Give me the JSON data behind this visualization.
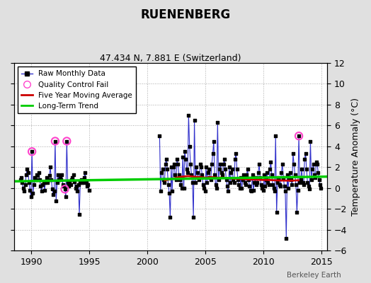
{
  "title": "RUENENBERG",
  "subtitle": "47.434 N, 7.881 E (Switzerland)",
  "ylabel": "Temperature Anomaly (°C)",
  "watermark": "Berkeley Earth",
  "xlim": [
    1988.5,
    2015.5
  ],
  "ylim": [
    -6,
    12
  ],
  "yticks": [
    -6,
    -4,
    -2,
    0,
    2,
    4,
    6,
    8,
    10,
    12
  ],
  "xticks": [
    1990,
    1995,
    2000,
    2005,
    2010,
    2015
  ],
  "bg_color": "#e0e0e0",
  "plot_bg_color": "#ffffff",
  "raw_color": "#3333cc",
  "ma_color": "#cc0000",
  "trend_color": "#00cc00",
  "qc_color": "#ff44cc",
  "raw_data": [
    [
      1989.042,
      0.8
    ],
    [
      1989.125,
      1.0
    ],
    [
      1989.208,
      0.5
    ],
    [
      1989.292,
      0.0
    ],
    [
      1989.375,
      -0.3
    ],
    [
      1989.458,
      0.3
    ],
    [
      1989.542,
      1.3
    ],
    [
      1989.625,
      1.8
    ],
    [
      1989.708,
      1.5
    ],
    [
      1989.792,
      0.5
    ],
    [
      1989.875,
      -0.2
    ],
    [
      1989.958,
      -0.8
    ],
    [
      1990.042,
      3.5
    ],
    [
      1990.125,
      -0.5
    ],
    [
      1990.208,
      0.3
    ],
    [
      1990.292,
      1.0
    ],
    [
      1990.375,
      0.8
    ],
    [
      1990.458,
      1.3
    ],
    [
      1990.542,
      1.2
    ],
    [
      1990.625,
      1.5
    ],
    [
      1990.708,
      0.8
    ],
    [
      1990.792,
      0.2
    ],
    [
      1990.875,
      -0.3
    ],
    [
      1990.958,
      0.3
    ],
    [
      1991.042,
      0.5
    ],
    [
      1991.125,
      -0.2
    ],
    [
      1991.208,
      0.5
    ],
    [
      1991.292,
      1.0
    ],
    [
      1991.375,
      0.5
    ],
    [
      1991.458,
      0.8
    ],
    [
      1991.542,
      1.2
    ],
    [
      1991.625,
      2.0
    ],
    [
      1991.708,
      0.8
    ],
    [
      1991.792,
      -0.1
    ],
    [
      1991.875,
      -0.6
    ],
    [
      1991.958,
      -0.3
    ],
    [
      1992.042,
      4.5
    ],
    [
      1992.125,
      -1.2
    ],
    [
      1992.208,
      0.5
    ],
    [
      1992.292,
      1.3
    ],
    [
      1992.375,
      0.8
    ],
    [
      1992.458,
      1.0
    ],
    [
      1992.542,
      0.8
    ],
    [
      1992.625,
      1.3
    ],
    [
      1992.708,
      0.3
    ],
    [
      1992.792,
      0.2
    ],
    [
      1992.875,
      -0.1
    ],
    [
      1992.958,
      -0.8
    ],
    [
      1993.042,
      4.5
    ],
    [
      1993.125,
      0.5
    ],
    [
      1993.208,
      0.2
    ],
    [
      1993.292,
      0.6
    ],
    [
      1993.375,
      0.3
    ],
    [
      1993.458,
      0.8
    ],
    [
      1993.542,
      1.0
    ],
    [
      1993.625,
      1.3
    ],
    [
      1993.708,
      0.6
    ],
    [
      1993.792,
      0.0
    ],
    [
      1993.875,
      0.2
    ],
    [
      1993.958,
      -0.3
    ],
    [
      1994.042,
      0.3
    ],
    [
      1994.125,
      -2.5
    ],
    [
      1994.208,
      0.5
    ],
    [
      1994.292,
      0.8
    ],
    [
      1994.375,
      0.5
    ],
    [
      1994.458,
      0.5
    ],
    [
      1994.542,
      1.0
    ],
    [
      1994.625,
      1.5
    ],
    [
      1994.708,
      0.5
    ],
    [
      1994.792,
      0.2
    ],
    [
      1994.875,
      0.3
    ],
    [
      1994.958,
      -0.2
    ],
    [
      2001.042,
      5.0
    ],
    [
      2001.125,
      -0.3
    ],
    [
      2001.208,
      1.5
    ],
    [
      2001.292,
      1.8
    ],
    [
      2001.375,
      0.8
    ],
    [
      2001.458,
      0.5
    ],
    [
      2001.542,
      2.3
    ],
    [
      2001.625,
      2.8
    ],
    [
      2001.708,
      1.8
    ],
    [
      2001.792,
      0.3
    ],
    [
      2001.875,
      -0.5
    ],
    [
      2001.958,
      -2.8
    ],
    [
      2002.042,
      2.0
    ],
    [
      2002.125,
      -0.3
    ],
    [
      2002.208,
      2.0
    ],
    [
      2002.292,
      2.3
    ],
    [
      2002.375,
      1.3
    ],
    [
      2002.458,
      0.8
    ],
    [
      2002.542,
      2.8
    ],
    [
      2002.625,
      2.3
    ],
    [
      2002.708,
      1.3
    ],
    [
      2002.792,
      0.8
    ],
    [
      2002.875,
      0.3
    ],
    [
      2002.958,
      0.0
    ],
    [
      2003.042,
      3.0
    ],
    [
      2003.125,
      0.0
    ],
    [
      2003.208,
      3.5
    ],
    [
      2003.292,
      2.8
    ],
    [
      2003.375,
      1.8
    ],
    [
      2003.458,
      1.5
    ],
    [
      2003.542,
      7.0
    ],
    [
      2003.625,
      4.0
    ],
    [
      2003.708,
      2.3
    ],
    [
      2003.792,
      1.3
    ],
    [
      2003.875,
      0.5
    ],
    [
      2003.958,
      -2.8
    ],
    [
      2004.042,
      6.5
    ],
    [
      2004.125,
      0.5
    ],
    [
      2004.208,
      2.0
    ],
    [
      2004.292,
      1.5
    ],
    [
      2004.375,
      1.0
    ],
    [
      2004.458,
      0.8
    ],
    [
      2004.542,
      2.3
    ],
    [
      2004.625,
      2.0
    ],
    [
      2004.708,
      1.3
    ],
    [
      2004.792,
      0.3
    ],
    [
      2004.875,
      0.0
    ],
    [
      2004.958,
      -0.3
    ],
    [
      2005.042,
      2.0
    ],
    [
      2005.125,
      0.5
    ],
    [
      2005.208,
      1.5
    ],
    [
      2005.292,
      1.8
    ],
    [
      2005.375,
      1.0
    ],
    [
      2005.458,
      0.8
    ],
    [
      2005.542,
      2.3
    ],
    [
      2005.625,
      3.3
    ],
    [
      2005.708,
      4.5
    ],
    [
      2005.792,
      1.3
    ],
    [
      2005.875,
      0.3
    ],
    [
      2005.958,
      0.0
    ],
    [
      2006.042,
      6.3
    ],
    [
      2006.125,
      0.8
    ],
    [
      2006.208,
      1.8
    ],
    [
      2006.292,
      2.3
    ],
    [
      2006.375,
      1.5
    ],
    [
      2006.458,
      1.3
    ],
    [
      2006.542,
      2.3
    ],
    [
      2006.625,
      2.8
    ],
    [
      2006.708,
      1.8
    ],
    [
      2006.792,
      0.8
    ],
    [
      2006.875,
      0.2
    ],
    [
      2006.958,
      -0.3
    ],
    [
      2007.042,
      2.0
    ],
    [
      2007.125,
      0.5
    ],
    [
      2007.208,
      1.5
    ],
    [
      2007.292,
      1.8
    ],
    [
      2007.375,
      0.8
    ],
    [
      2007.458,
      0.5
    ],
    [
      2007.542,
      2.8
    ],
    [
      2007.625,
      3.3
    ],
    [
      2007.708,
      1.8
    ],
    [
      2007.792,
      0.8
    ],
    [
      2007.875,
      0.3
    ],
    [
      2007.958,
      0.0
    ],
    [
      2008.042,
      1.0
    ],
    [
      2008.125,
      0.0
    ],
    [
      2008.208,
      0.8
    ],
    [
      2008.292,
      1.3
    ],
    [
      2008.375,
      0.5
    ],
    [
      2008.458,
      0.3
    ],
    [
      2008.542,
      1.3
    ],
    [
      2008.625,
      1.8
    ],
    [
      2008.708,
      0.8
    ],
    [
      2008.792,
      0.2
    ],
    [
      2008.875,
      -0.2
    ],
    [
      2008.958,
      -0.3
    ],
    [
      2009.042,
      1.3
    ],
    [
      2009.125,
      -0.2
    ],
    [
      2009.208,
      0.5
    ],
    [
      2009.292,
      1.0
    ],
    [
      2009.375,
      0.3
    ],
    [
      2009.458,
      0.5
    ],
    [
      2009.542,
      1.5
    ],
    [
      2009.625,
      2.3
    ],
    [
      2009.708,
      1.0
    ],
    [
      2009.792,
      0.3
    ],
    [
      2009.875,
      0.0
    ],
    [
      2009.958,
      -0.2
    ],
    [
      2010.042,
      1.3
    ],
    [
      2010.125,
      0.2
    ],
    [
      2010.208,
      0.8
    ],
    [
      2010.292,
      1.5
    ],
    [
      2010.375,
      0.5
    ],
    [
      2010.458,
      0.3
    ],
    [
      2010.542,
      1.8
    ],
    [
      2010.625,
      2.5
    ],
    [
      2010.708,
      1.3
    ],
    [
      2010.792,
      0.3
    ],
    [
      2010.875,
      0.0
    ],
    [
      2010.958,
      -0.3
    ],
    [
      2011.042,
      5.0
    ],
    [
      2011.125,
      -2.3
    ],
    [
      2011.208,
      0.5
    ],
    [
      2011.292,
      1.0
    ],
    [
      2011.375,
      0.3
    ],
    [
      2011.458,
      0.2
    ],
    [
      2011.542,
      1.5
    ],
    [
      2011.625,
      2.3
    ],
    [
      2011.708,
      1.0
    ],
    [
      2011.792,
      0.2
    ],
    [
      2011.875,
      -0.3
    ],
    [
      2011.958,
      -4.8
    ],
    [
      2012.042,
      1.3
    ],
    [
      2012.125,
      0.0
    ],
    [
      2012.208,
      1.0
    ],
    [
      2012.292,
      1.5
    ],
    [
      2012.375,
      0.8
    ],
    [
      2012.458,
      0.3
    ],
    [
      2012.542,
      3.3
    ],
    [
      2012.625,
      2.3
    ],
    [
      2012.708,
      1.3
    ],
    [
      2012.792,
      0.3
    ],
    [
      2012.875,
      -2.3
    ],
    [
      2012.958,
      -0.2
    ],
    [
      2013.042,
      5.0
    ],
    [
      2013.125,
      0.5
    ],
    [
      2013.208,
      0.8
    ],
    [
      2013.292,
      1.8
    ],
    [
      2013.375,
      0.5
    ],
    [
      2013.458,
      0.3
    ],
    [
      2013.542,
      2.8
    ],
    [
      2013.625,
      3.3
    ],
    [
      2013.708,
      1.8
    ],
    [
      2013.792,
      0.5
    ],
    [
      2013.875,
      0.2
    ],
    [
      2013.958,
      -0.1
    ],
    [
      2014.042,
      4.5
    ],
    [
      2014.125,
      0.8
    ],
    [
      2014.208,
      1.8
    ],
    [
      2014.292,
      2.3
    ],
    [
      2014.375,
      1.3
    ],
    [
      2014.458,
      1.0
    ],
    [
      2014.542,
      2.5
    ],
    [
      2014.625,
      2.3
    ],
    [
      2014.708,
      1.5
    ],
    [
      2014.792,
      0.8
    ],
    [
      2014.875,
      0.3
    ],
    [
      2014.958,
      0.0
    ]
  ],
  "qc_fail_points": [
    [
      1990.042,
      3.5
    ],
    [
      1992.042,
      4.5
    ],
    [
      1992.875,
      -0.1
    ],
    [
      1993.042,
      4.5
    ],
    [
      2013.042,
      5.0
    ]
  ],
  "moving_avg": [
    [
      2001.5,
      0.75
    ],
    [
      2002.0,
      0.85
    ],
    [
      2002.5,
      1.0
    ],
    [
      2003.0,
      1.1
    ],
    [
      2003.5,
      1.15
    ],
    [
      2004.0,
      1.1
    ],
    [
      2004.5,
      1.05
    ],
    [
      2005.0,
      1.0
    ],
    [
      2005.5,
      1.05
    ],
    [
      2006.0,
      1.0
    ],
    [
      2006.5,
      1.0
    ],
    [
      2007.0,
      0.95
    ],
    [
      2007.5,
      0.9
    ],
    [
      2008.0,
      0.88
    ],
    [
      2008.5,
      0.85
    ],
    [
      2009.0,
      0.82
    ],
    [
      2009.5,
      0.8
    ],
    [
      2010.0,
      0.78
    ],
    [
      2010.5,
      0.78
    ],
    [
      2011.0,
      0.75
    ],
    [
      2011.5,
      0.73
    ],
    [
      2012.0,
      0.72
    ],
    [
      2012.5,
      0.72
    ],
    [
      2013.0,
      0.75
    ]
  ],
  "trend_x": [
    1988.5,
    2015.5
  ],
  "trend_y": [
    0.65,
    1.1
  ]
}
